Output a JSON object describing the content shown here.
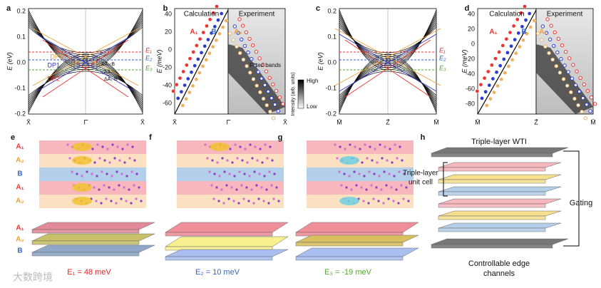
{
  "panel_a": {
    "label": "a",
    "y_axis_label": "E (eV)",
    "y_tick_labels": [
      "0.2",
      "0.1",
      "0.0",
      "-0.1",
      "-0.2"
    ],
    "x_tick_labels": [
      "X̄",
      "Γ̄",
      "X̄"
    ],
    "level_labels": [
      "E₁",
      "E₂",
      "E₃"
    ],
    "annotations": [
      "DP3",
      "DP1",
      "DP2",
      "ΔA₂-B",
      "ΔA₁",
      "ΔA₁-B"
    ]
  },
  "panel_b": {
    "label": "b",
    "y_axis_label": "E (meV)",
    "y_tick_labels": [
      "40",
      "20",
      "0",
      "-20",
      "-40",
      "-60"
    ],
    "x_tick_labels": [
      "X̄",
      "Γ̄",
      "X̄"
    ],
    "left_title": "Calculation",
    "right_title": "Experiment",
    "band_labels": [
      "A₁",
      "B",
      "A₂"
    ],
    "annotation": "Fitted bands",
    "colorbar": {
      "title": "Intensity (arb. units)",
      "high": "High",
      "low": "Low"
    }
  },
  "panel_c": {
    "label": "c",
    "y_axis_label": "E (eV)",
    "y_tick_labels": [
      "0.2",
      "0.1",
      "0.0",
      "-0.1",
      "-0.2"
    ],
    "x_tick_labels": [
      "M̄",
      "Z̄",
      "M̄"
    ],
    "level_labels": [
      "E₁",
      "E₂",
      "E₃"
    ]
  },
  "panel_d": {
    "label": "d",
    "y_axis_label": "E (meV)",
    "y_tick_labels": [
      "40",
      "20",
      "0",
      "-20",
      "-40",
      "-60",
      "-80"
    ],
    "x_tick_labels": [
      "M̄",
      "Z̄",
      "M̄"
    ],
    "left_title": "Calculation",
    "right_title": "Experiment",
    "band_labels": [
      "A₁",
      "B",
      "A₂"
    ]
  },
  "panel_e": {
    "label": "e",
    "layer_labels": [
      "A₁",
      "A₂",
      "B",
      "A₁",
      "A₂"
    ],
    "slab_labels": [
      "A₁",
      "A₂",
      "B"
    ],
    "energy_label": "E₁ = 48 meV"
  },
  "panel_f": {
    "label": "f",
    "energy_label": "E₂ = 10 meV"
  },
  "panel_g": {
    "label": "g",
    "energy_label": "E₃ = -19 meV"
  },
  "panel_h": {
    "label": "h",
    "top_label": "Triple-layer WTI",
    "cell_label_lines": [
      "Triple-layer",
      "unit cell"
    ],
    "gating_label": "Gating",
    "bottom_label_lines": [
      "Controllable edge",
      "channels"
    ]
  },
  "watermark": "大数跨境"
}
